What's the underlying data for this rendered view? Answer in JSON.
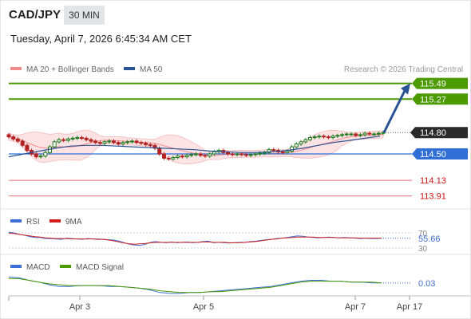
{
  "header": {
    "symbol": "CAD/JPY",
    "interval": "30 MIN",
    "datetime": "Tuesday, April 7, 2026 6:45:34 AM CET"
  },
  "legend": {
    "ma20": "MA 20 + Bollinger Bands",
    "ma50": "MA 50",
    "copyright": "Research © 2026 Trading Central"
  },
  "colors": {
    "resistance": "#4a9a00",
    "pivot": "#2f6fd6",
    "support": "#e87070",
    "candle_up": "#1f7a1f",
    "candle_down": "#b22222",
    "bollinger": "#f7b9b9",
    "ma50": "#2a5396",
    "rsi": "#3d6fd6",
    "rsi_ma": "#d21e1e",
    "macd": "#3d6fd6",
    "macd_signal": "#4a9a00"
  },
  "chart_data": [
    {
      "type": "line",
      "title": "CAD/JPY",
      "x_labels": [
        "Apr 3",
        "Apr 5",
        "Apr 7",
        "Apr 17"
      ],
      "ylim": [
        113.75,
        115.62
      ],
      "levels": [
        {
          "value": 115.49,
          "label": "115.49",
          "kind": "resistance"
        },
        {
          "value": 115.27,
          "label": "115.27",
          "kind": "resistance"
        },
        {
          "value": 114.8,
          "label": "114.80",
          "kind": "last"
        },
        {
          "value": 114.5,
          "label": "114.50",
          "kind": "pivot"
        },
        {
          "value": 114.13,
          "label": "114.13",
          "kind": "support"
        },
        {
          "value": 113.91,
          "label": "113.91",
          "kind": "support"
        }
      ],
      "forecast_arrow": {
        "from": 114.8,
        "to": 115.49
      },
      "series": [
        {
          "name": "Price",
          "values": [
            114.74,
            114.71,
            114.68,
            114.62,
            114.55,
            114.5,
            114.46,
            114.47,
            114.52,
            114.6,
            114.67,
            114.7,
            114.69,
            114.71,
            114.72,
            114.73,
            114.72,
            114.7,
            114.68,
            114.66,
            114.65,
            114.67,
            114.68,
            114.66,
            114.64,
            114.66,
            114.67,
            114.68,
            114.66,
            114.65,
            114.63,
            114.62,
            114.58,
            114.5,
            114.44,
            114.43,
            114.45,
            114.47,
            114.46,
            114.48,
            114.49,
            114.5,
            114.48,
            114.47,
            114.5,
            114.53,
            114.55,
            114.52,
            114.5,
            114.49,
            114.5,
            114.49,
            114.48,
            114.49,
            114.5,
            114.51,
            114.52,
            114.56,
            114.55,
            114.53,
            114.52,
            114.54,
            114.6,
            114.64,
            114.67,
            114.7,
            114.73,
            114.74,
            114.75,
            114.74,
            114.73,
            114.75,
            114.76,
            114.77,
            114.78,
            114.78,
            114.76,
            114.77,
            114.79,
            114.78,
            114.78,
            114.79,
            114.8
          ]
        },
        {
          "name": "MA 50",
          "values": [
            114.46,
            114.5,
            114.54,
            114.58,
            114.61,
            114.62,
            114.62,
            114.61,
            114.6,
            114.59,
            114.58,
            114.57,
            114.56,
            114.54,
            114.53,
            114.52,
            114.52,
            114.53,
            114.55,
            114.58,
            114.62,
            114.66,
            114.69,
            114.72,
            114.75
          ]
        }
      ]
    },
    {
      "type": "line",
      "title": "RSI",
      "ylim": [
        30,
        70
      ],
      "ticks": [
        "70",
        "30"
      ],
      "last_value": "55.66",
      "series": [
        {
          "name": "RSI",
          "values": [
            72,
            70,
            66,
            64,
            60,
            58,
            58,
            55,
            55,
            54,
            53,
            56,
            55,
            54,
            53,
            55,
            54,
            54,
            53,
            52,
            51,
            48,
            44,
            40,
            38,
            37,
            40,
            45,
            47,
            45,
            44,
            46,
            44,
            45,
            46,
            44,
            45,
            47,
            48,
            44,
            45,
            44,
            43,
            44,
            45,
            45,
            47,
            48,
            50,
            52,
            53,
            55,
            56,
            58,
            60,
            62,
            61,
            59,
            58,
            57,
            58,
            59,
            58,
            57,
            58,
            57,
            56,
            55,
            56,
            55,
            55,
            55.66
          ]
        },
        {
          "name": "9MA",
          "values": [
            69,
            68,
            66,
            64,
            62,
            60,
            59,
            57,
            56,
            55,
            55,
            55,
            54,
            54,
            54,
            54,
            54,
            53,
            53,
            51,
            49,
            46,
            43,
            41,
            40,
            41,
            42,
            44,
            45,
            45,
            45,
            45,
            45,
            45,
            45,
            45,
            45,
            46,
            46,
            45,
            45,
            45,
            44,
            44,
            44,
            45,
            46,
            47,
            49,
            51,
            53,
            54,
            56,
            57,
            58,
            59,
            59,
            59,
            59,
            58,
            58,
            58,
            58,
            57,
            57,
            57,
            57,
            56,
            56,
            56,
            56,
            56
          ]
        }
      ]
    },
    {
      "type": "line",
      "title": "MACD",
      "last_value": "0.03",
      "series": [
        {
          "name": "MACD",
          "values": [
            0.1,
            0.09,
            0.06,
            0.04,
            0.01,
            -0.01,
            -0.01,
            0.0,
            0.0,
            0.0,
            -0.01,
            -0.01,
            -0.02,
            -0.03,
            -0.05,
            -0.08,
            -0.09,
            -0.09,
            -0.08,
            -0.08,
            -0.07,
            -0.06,
            -0.05,
            -0.04,
            -0.03,
            -0.02,
            -0.01,
            0.01,
            0.03,
            0.05,
            0.06,
            0.06,
            0.05,
            0.05,
            0.04,
            0.04,
            0.03,
            0.03
          ]
        },
        {
          "name": "MACD Signal",
          "values": [
            0.08,
            0.08,
            0.06,
            0.04,
            0.02,
            0.01,
            0.0,
            0.0,
            0.0,
            0.0,
            0.0,
            -0.01,
            -0.02,
            -0.03,
            -0.04,
            -0.06,
            -0.07,
            -0.08,
            -0.08,
            -0.08,
            -0.07,
            -0.07,
            -0.06,
            -0.05,
            -0.04,
            -0.03,
            -0.02,
            0.0,
            0.02,
            0.04,
            0.05,
            0.05,
            0.05,
            0.05,
            0.04,
            0.04,
            0.04,
            0.03
          ]
        }
      ]
    }
  ]
}
